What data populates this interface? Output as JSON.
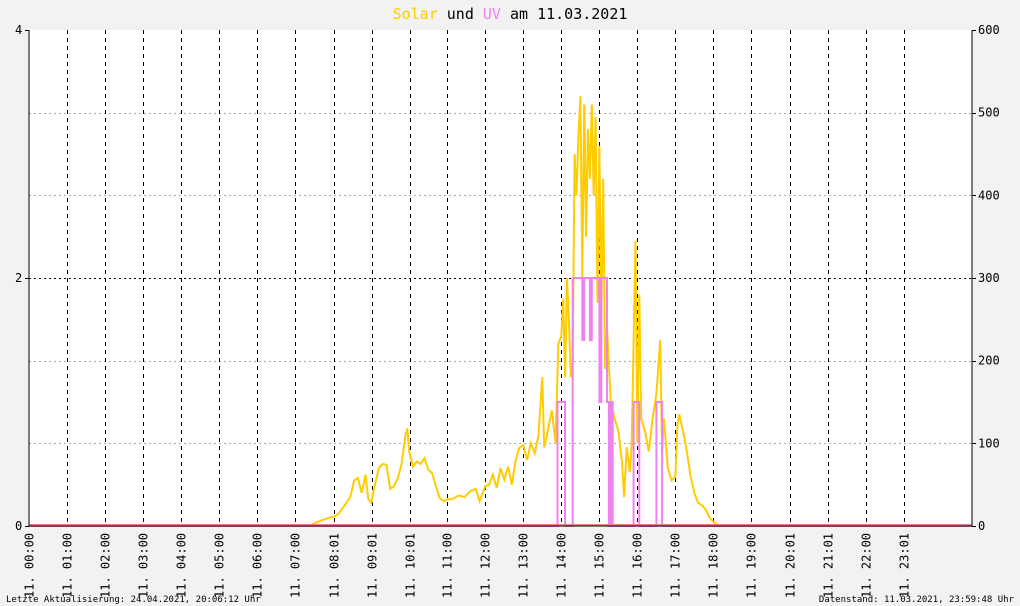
{
  "title": {
    "solar": "Solar",
    "und": "und",
    "uv": "UV",
    "rest": "am 11.03.2021"
  },
  "footer": {
    "left": "Letzte Aktualisierung: 24.04.2021, 20:06:12 Uhr",
    "right": "Datenstand: 11.03.2021, 23:59:48 Uhr"
  },
  "colors": {
    "solar": "#ffcc00",
    "uv": "#ee82ee",
    "baseline": "#f08080",
    "background": "#f2f2f2",
    "plot_background": "#ffffff"
  },
  "chart_data": {
    "type": "line",
    "x_unit": "hour of day",
    "xlim": [
      0,
      24.8
    ],
    "x_ticks": [
      {
        "x": 0.0,
        "label": "11. 00:00"
      },
      {
        "x": 1.0,
        "label": "11. 01:00"
      },
      {
        "x": 2.0,
        "label": "11. 02:00"
      },
      {
        "x": 3.0,
        "label": "11. 03:00"
      },
      {
        "x": 4.0,
        "label": "11. 04:00"
      },
      {
        "x": 5.0,
        "label": "11. 05:00"
      },
      {
        "x": 6.0,
        "label": "11. 06:00"
      },
      {
        "x": 7.0,
        "label": "11. 07:00"
      },
      {
        "x": 8.02,
        "label": "11. 08:01"
      },
      {
        "x": 9.02,
        "label": "11. 09:01"
      },
      {
        "x": 10.02,
        "label": "11. 10:01"
      },
      {
        "x": 11.0,
        "label": "11. 11:00"
      },
      {
        "x": 12.0,
        "label": "11. 12:00"
      },
      {
        "x": 13.0,
        "label": "11. 13:00"
      },
      {
        "x": 14.0,
        "label": "11. 14:00"
      },
      {
        "x": 15.0,
        "label": "11. 15:00"
      },
      {
        "x": 16.0,
        "label": "11. 16:00"
      },
      {
        "x": 17.0,
        "label": "11. 17:00"
      },
      {
        "x": 18.0,
        "label": "11. 18:00"
      },
      {
        "x": 19.0,
        "label": "11. 19:00"
      },
      {
        "x": 20.02,
        "label": "11. 20:01"
      },
      {
        "x": 21.02,
        "label": "11. 21:01"
      },
      {
        "x": 22.0,
        "label": "11. 22:00"
      },
      {
        "x": 23.02,
        "label": "11. 23:01"
      }
    ],
    "y_left": {
      "lim": [
        0,
        4
      ],
      "ticks": [
        "0",
        "2",
        "4"
      ],
      "minor": [
        1,
        3
      ]
    },
    "y_right": {
      "lim": [
        0,
        600
      ],
      "ticks": [
        "0",
        "100",
        "200",
        "300",
        "400",
        "500",
        "600"
      ]
    },
    "grid": true,
    "series": [
      {
        "name": "Solar",
        "axis": "right",
        "color": "#ffcc00",
        "points": [
          [
            0,
            0
          ],
          [
            7.35,
            0
          ],
          [
            7.5,
            3
          ],
          [
            7.7,
            7
          ],
          [
            7.9,
            10
          ],
          [
            8.05,
            12
          ],
          [
            8.15,
            15
          ],
          [
            8.3,
            25
          ],
          [
            8.45,
            35
          ],
          [
            8.55,
            55
          ],
          [
            8.65,
            58
          ],
          [
            8.75,
            40
          ],
          [
            8.85,
            62
          ],
          [
            8.92,
            33
          ],
          [
            9.0,
            28
          ],
          [
            9.1,
            50
          ],
          [
            9.2,
            70
          ],
          [
            9.3,
            75
          ],
          [
            9.4,
            74
          ],
          [
            9.5,
            45
          ],
          [
            9.6,
            48
          ],
          [
            9.7,
            58
          ],
          [
            9.8,
            75
          ],
          [
            9.9,
            110
          ],
          [
            9.95,
            118
          ],
          [
            10.0,
            90
          ],
          [
            10.1,
            72
          ],
          [
            10.2,
            78
          ],
          [
            10.3,
            75
          ],
          [
            10.4,
            82
          ],
          [
            10.5,
            68
          ],
          [
            10.6,
            64
          ],
          [
            10.7,
            48
          ],
          [
            10.8,
            34
          ],
          [
            10.9,
            30
          ],
          [
            11.0,
            32
          ],
          [
            11.15,
            33
          ],
          [
            11.3,
            37
          ],
          [
            11.45,
            35
          ],
          [
            11.6,
            42
          ],
          [
            11.75,
            45
          ],
          [
            11.85,
            30
          ],
          [
            12.0,
            48
          ],
          [
            12.1,
            50
          ],
          [
            12.2,
            62
          ],
          [
            12.3,
            46
          ],
          [
            12.4,
            70
          ],
          [
            12.5,
            56
          ],
          [
            12.6,
            72
          ],
          [
            12.7,
            50
          ],
          [
            12.8,
            80
          ],
          [
            12.9,
            95
          ],
          [
            13.0,
            98
          ],
          [
            13.1,
            80
          ],
          [
            13.2,
            100
          ],
          [
            13.3,
            88
          ],
          [
            13.4,
            110
          ],
          [
            13.5,
            180
          ],
          [
            13.55,
            95
          ],
          [
            13.6,
            105
          ],
          [
            13.75,
            140
          ],
          [
            13.85,
            100
          ],
          [
            13.92,
            220
          ],
          [
            14.0,
            230
          ],
          [
            14.05,
            275
          ],
          [
            14.1,
            180
          ],
          [
            14.15,
            300
          ],
          [
            14.2,
            250
          ],
          [
            14.25,
            180
          ],
          [
            14.3,
            200
          ],
          [
            14.35,
            450
          ],
          [
            14.4,
            400
          ],
          [
            14.45,
            470
          ],
          [
            14.5,
            520
          ],
          [
            14.55,
            300
          ],
          [
            14.6,
            510
          ],
          [
            14.65,
            350
          ],
          [
            14.7,
            480
          ],
          [
            14.75,
            420
          ],
          [
            14.8,
            510
          ],
          [
            14.85,
            400
          ],
          [
            14.9,
            495
          ],
          [
            14.95,
            270
          ],
          [
            15.0,
            460
          ],
          [
            15.05,
            250
          ],
          [
            15.1,
            420
          ],
          [
            15.15,
            190
          ],
          [
            15.2,
            240
          ],
          [
            15.3,
            150
          ],
          [
            15.4,
            130
          ],
          [
            15.5,
            115
          ],
          [
            15.6,
            75
          ],
          [
            15.65,
            35
          ],
          [
            15.72,
            95
          ],
          [
            15.8,
            65
          ],
          [
            15.85,
            100
          ],
          [
            15.95,
            345
          ],
          [
            16.0,
            100
          ],
          [
            16.05,
            280
          ],
          [
            16.1,
            130
          ],
          [
            16.2,
            115
          ],
          [
            16.3,
            90
          ],
          [
            16.4,
            130
          ],
          [
            16.5,
            160
          ],
          [
            16.6,
            225
          ],
          [
            16.65,
            90
          ],
          [
            16.7,
            130
          ],
          [
            16.8,
            70
          ],
          [
            16.9,
            55
          ],
          [
            17.0,
            60
          ],
          [
            17.05,
            120
          ],
          [
            17.1,
            135
          ],
          [
            17.2,
            115
          ],
          [
            17.3,
            90
          ],
          [
            17.4,
            60
          ],
          [
            17.5,
            40
          ],
          [
            17.6,
            28
          ],
          [
            17.7,
            25
          ],
          [
            17.8,
            20
          ],
          [
            17.9,
            10
          ],
          [
            18.0,
            5
          ],
          [
            18.1,
            2
          ],
          [
            18.2,
            0
          ],
          [
            24.8,
            0
          ]
        ]
      },
      {
        "name": "UV",
        "axis": "left",
        "color": "#ee82ee",
        "points": [
          [
            0,
            0
          ],
          [
            13.9,
            0
          ],
          [
            13.9,
            1
          ],
          [
            14.1,
            1
          ],
          [
            14.1,
            0
          ],
          [
            14.3,
            0
          ],
          [
            14.3,
            2
          ],
          [
            14.55,
            2
          ],
          [
            14.55,
            1.5
          ],
          [
            14.6,
            1.5
          ],
          [
            14.6,
            2
          ],
          [
            14.75,
            2
          ],
          [
            14.75,
            1.5
          ],
          [
            14.8,
            1.5
          ],
          [
            14.8,
            2
          ],
          [
            15.0,
            2
          ],
          [
            15.0,
            1
          ],
          [
            15.05,
            1
          ],
          [
            15.05,
            2
          ],
          [
            15.2,
            2
          ],
          [
            15.2,
            1
          ],
          [
            15.25,
            1
          ],
          [
            15.25,
            0
          ],
          [
            15.3,
            0
          ],
          [
            15.3,
            1
          ],
          [
            15.35,
            1
          ],
          [
            15.35,
            0
          ],
          [
            15.9,
            0
          ],
          [
            15.9,
            1
          ],
          [
            16.05,
            1
          ],
          [
            16.05,
            0
          ],
          [
            16.5,
            0
          ],
          [
            16.5,
            1
          ],
          [
            16.65,
            1
          ],
          [
            16.65,
            0
          ],
          [
            24.8,
            0
          ]
        ]
      }
    ]
  }
}
